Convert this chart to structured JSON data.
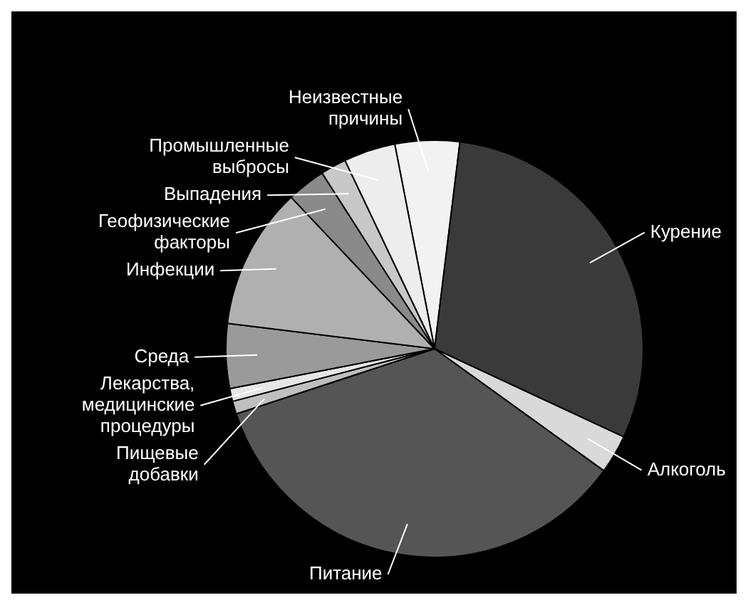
{
  "chart_data": {
    "type": "pie",
    "categories": [
      "Неизвестные причины",
      "Курение",
      "Алкоголь",
      "Питание",
      "Пищевые добавки",
      "Лекарства, медицинские процедуры",
      "Среда",
      "Инфекции",
      "Геофизические факторы",
      "Выпадения",
      "Промышленные выбросы"
    ],
    "values": [
      5,
      30,
      3,
      35,
      1,
      1,
      5,
      11,
      3,
      2,
      4
    ],
    "colors": [
      "#f2f2f2",
      "#3a3a3a",
      "#d9d9d9",
      "#555555",
      "#bfbfbf",
      "#e6e6e6",
      "#9a9a9a",
      "#b0b0b0",
      "#8a8a8a",
      "#c8c8c8",
      "#ededed"
    ]
  }
}
